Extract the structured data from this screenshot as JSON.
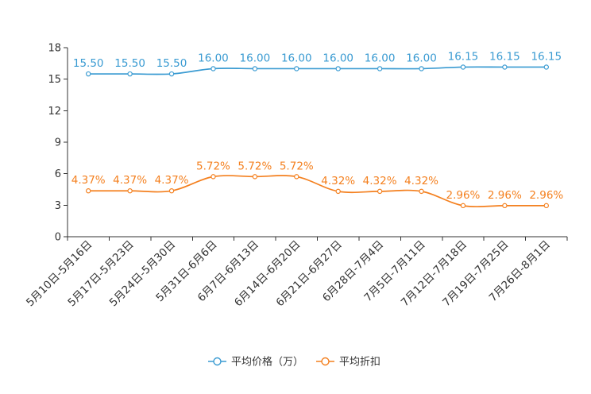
{
  "chart_data": {
    "type": "line",
    "smooth": true,
    "grid": false,
    "legend_position": "bottom",
    "ylim": [
      0,
      18
    ],
    "yticks": [
      0,
      3,
      6,
      9,
      12,
      15,
      18
    ],
    "categories": [
      "5月10日-5月16日",
      "5月17日-5月23日",
      "5月24日-5月30日",
      "5月31日-6月6日",
      "6月7日-6月13日",
      "6月14日-6月20日",
      "6月21日-6月27日",
      "6月28日-7月4日",
      "7月5日-7月11日",
      "7月12日-7月18日",
      "7月19日-7月25日",
      "7月26日-8月1日"
    ],
    "series": [
      {
        "name": "平均价格（万）",
        "color": "#3a9bd2",
        "values": [
          15.5,
          15.5,
          15.5,
          16.0,
          16.0,
          16.0,
          16.0,
          16.0,
          16.0,
          16.15,
          16.15,
          16.15
        ],
        "labels": [
          "15.50",
          "15.50",
          "15.50",
          "16.00",
          "16.00",
          "16.00",
          "16.00",
          "16.00",
          "16.00",
          "16.15",
          "16.15",
          "16.15"
        ]
      },
      {
        "name": "平均折扣",
        "color": "#f4801f",
        "values": [
          4.37,
          4.37,
          4.37,
          5.72,
          5.72,
          5.72,
          4.32,
          4.32,
          4.32,
          2.96,
          2.96,
          2.96
        ],
        "labels": [
          "4.37%",
          "4.37%",
          "4.37%",
          "5.72%",
          "5.72%",
          "5.72%",
          "4.32%",
          "4.32%",
          "4.32%",
          "2.96%",
          "2.96%",
          "2.96%"
        ]
      }
    ]
  }
}
